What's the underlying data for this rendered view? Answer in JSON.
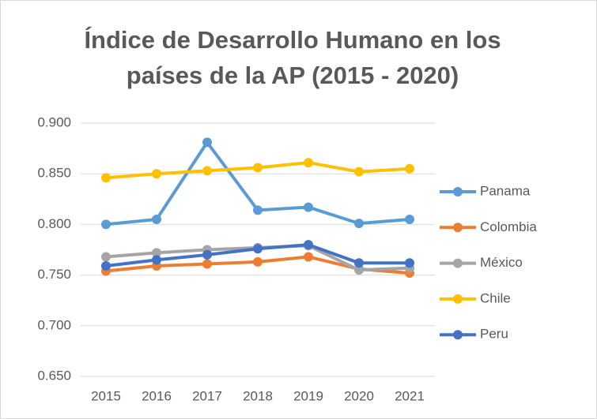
{
  "chart_data": {
    "type": "line",
    "title": "Índice de Desarrollo Humano en los países de la AP (2015 - 2020)",
    "categories": [
      "2015",
      "2016",
      "2017",
      "2018",
      "2019",
      "2020",
      "2021"
    ],
    "series": [
      {
        "name": "Panama",
        "color": "#5b9bd5",
        "values": [
          0.8,
          0.805,
          0.881,
          0.814,
          0.817,
          0.801,
          0.805
        ]
      },
      {
        "name": "Colombia",
        "color": "#ed7d31",
        "values": [
          0.754,
          0.759,
          0.761,
          0.763,
          0.768,
          0.756,
          0.752
        ]
      },
      {
        "name": "México",
        "color": "#a5a5a5",
        "values": [
          0.768,
          0.772,
          0.775,
          0.777,
          0.779,
          0.755,
          0.757
        ]
      },
      {
        "name": "Chile",
        "color": "#ffc000",
        "values": [
          0.846,
          0.85,
          0.853,
          0.856,
          0.861,
          0.852,
          0.855
        ]
      },
      {
        "name": "Peru",
        "color": "#4472c4",
        "values": [
          0.759,
          0.765,
          0.77,
          0.776,
          0.78,
          0.762,
          0.762
        ]
      }
    ],
    "ylim": [
      0.65,
      0.9
    ],
    "yticks": [
      {
        "value": 0.65,
        "label": "0.650"
      },
      {
        "value": 0.7,
        "label": "0.700"
      },
      {
        "value": 0.75,
        "label": "0.750"
      },
      {
        "value": 0.8,
        "label": "0.800"
      },
      {
        "value": 0.85,
        "label": "0.850"
      },
      {
        "value": 0.9,
        "label": "0.900"
      }
    ],
    "grid": true,
    "legend": "right"
  }
}
